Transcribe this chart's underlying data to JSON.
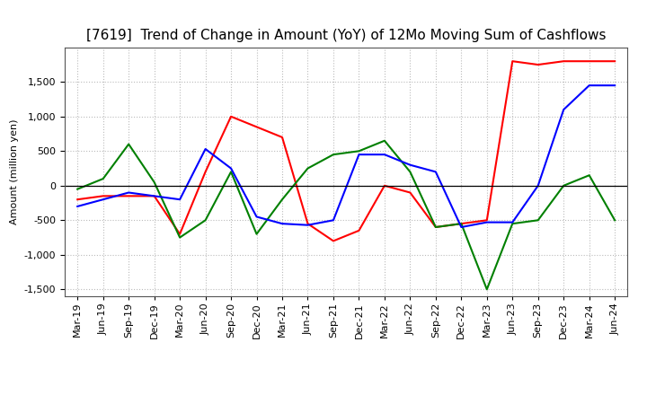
{
  "title": "[7619]  Trend of Change in Amount (YoY) of 12Mo Moving Sum of Cashflows",
  "ylabel": "Amount (million yen)",
  "x_labels": [
    "Mar-19",
    "Jun-19",
    "Sep-19",
    "Dec-19",
    "Mar-20",
    "Jun-20",
    "Sep-20",
    "Dec-20",
    "Mar-21",
    "Jun-21",
    "Sep-21",
    "Dec-21",
    "Mar-22",
    "Jun-22",
    "Sep-22",
    "Dec-22",
    "Mar-23",
    "Jun-23",
    "Sep-23",
    "Dec-23",
    "Mar-24",
    "Jun-24"
  ],
  "operating": [
    -200,
    -150,
    -150,
    -150,
    -700,
    200,
    1000,
    850,
    700,
    -550,
    -800,
    -650,
    0,
    -100,
    -600,
    -550,
    -500,
    1800,
    1750,
    1800,
    1800,
    1800
  ],
  "investing": [
    -50,
    100,
    600,
    50,
    -750,
    -500,
    200,
    -700,
    -200,
    250,
    450,
    500,
    650,
    200,
    -600,
    -550,
    -1500,
    -550,
    -500,
    0,
    150,
    -500
  ],
  "free": [
    -300,
    -200,
    -100,
    -150,
    -200,
    530,
    250,
    -450,
    -550,
    -570,
    -500,
    450,
    450,
    300,
    200,
    -600,
    -530,
    -530,
    0,
    1100,
    1450,
    1450
  ],
  "operating_color": "#ff0000",
  "investing_color": "#008000",
  "free_color": "#0000ff",
  "ylim": [
    -1600,
    2000
  ],
  "yticks": [
    -1500,
    -1000,
    -500,
    0,
    500,
    1000,
    1500
  ],
  "background_color": "#ffffff",
  "grid_color": "#bbbbbb",
  "title_fontsize": 11,
  "axis_fontsize": 8,
  "legend_fontsize": 9
}
